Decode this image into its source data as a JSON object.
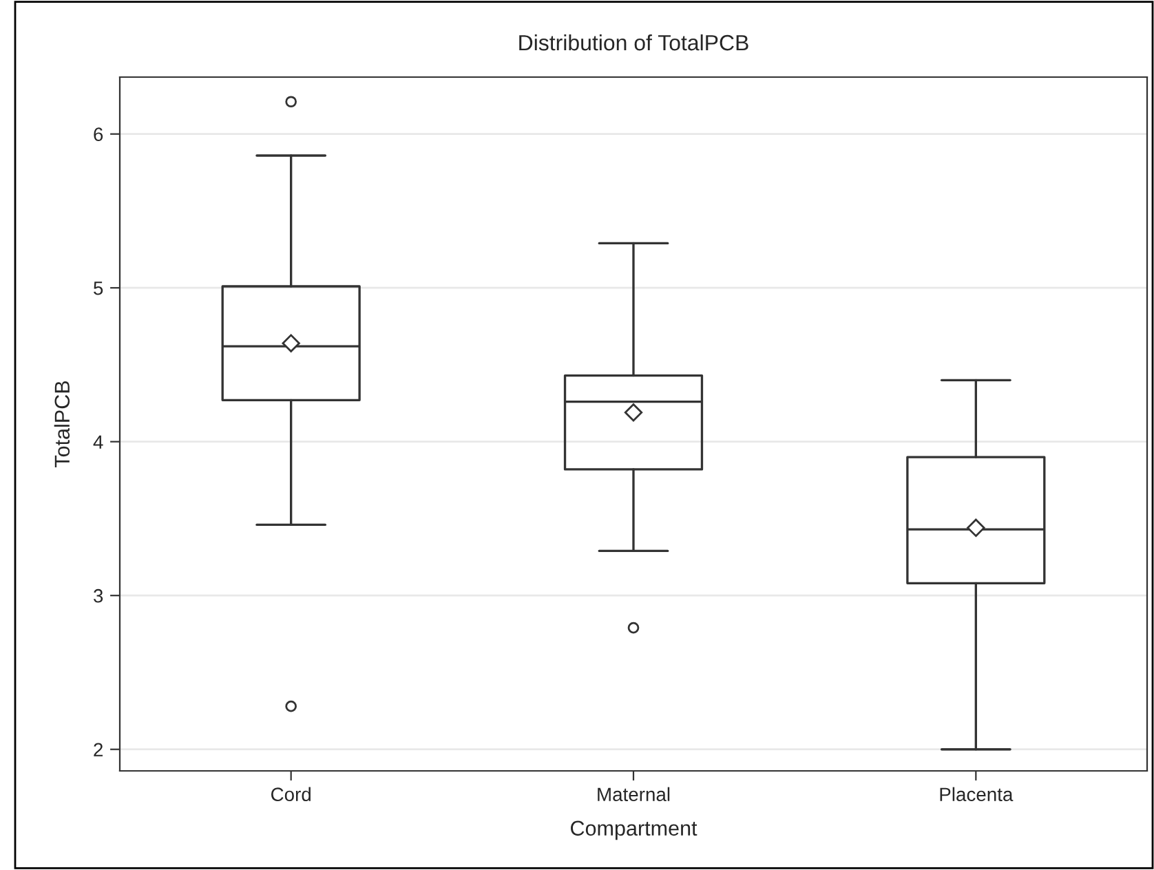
{
  "chart_data": {
    "type": "box",
    "title": "Distribution of TotalPCB",
    "xlabel": "Compartment",
    "ylabel": "TotalPCB",
    "categories": [
      "Cord",
      "Maternal",
      "Placenta"
    ],
    "boxes": [
      {
        "low": 3.46,
        "q1": 4.27,
        "median": 4.62,
        "q3": 5.01,
        "high": 5.86,
        "mean": 4.64,
        "outliers": [
          6.21,
          2.28
        ]
      },
      {
        "low": 3.29,
        "q1": 3.82,
        "median": 4.26,
        "q3": 4.43,
        "high": 5.29,
        "mean": 4.19,
        "outliers": [
          2.79
        ]
      },
      {
        "low": 2.0,
        "q1": 3.08,
        "median": 3.43,
        "q3": 3.9,
        "high": 4.4,
        "mean": 3.44
      }
    ],
    "ylim": [
      1.86,
      6.37
    ],
    "yticks": [
      2,
      3,
      4,
      5,
      6
    ],
    "grid": "y",
    "legend": false
  }
}
